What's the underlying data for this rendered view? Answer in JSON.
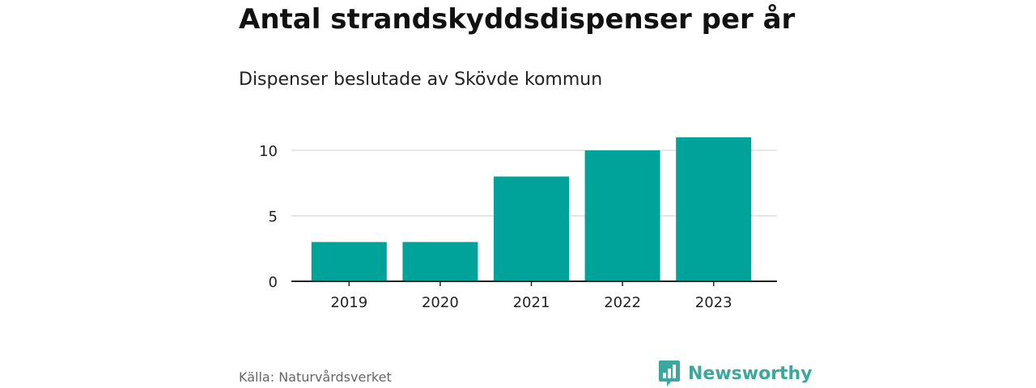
{
  "title": "Antal strandskyddsdispenser per år",
  "subtitle": "Dispenser beslutade av Skövde kommun",
  "source": "Källa: Naturvårdsverket",
  "brand": {
    "name": "Newsworthy",
    "logo_icon": "bar-chart-speech-bubble-icon",
    "color": "#3aa89c"
  },
  "colors": {
    "bar": "#00a39a",
    "grid": "#dddddd",
    "axis": "#222222"
  },
  "chart_data": {
    "type": "bar",
    "title": "Antal strandskyddsdispenser per år",
    "subtitle": "Dispenser beslutade av Skövde kommun",
    "categories": [
      "2019",
      "2020",
      "2021",
      "2022",
      "2023"
    ],
    "values": [
      3,
      3,
      8,
      10,
      11
    ],
    "yticks": [
      0,
      5,
      10
    ],
    "ylim": [
      0,
      11
    ],
    "grid": true,
    "legend": "none"
  }
}
